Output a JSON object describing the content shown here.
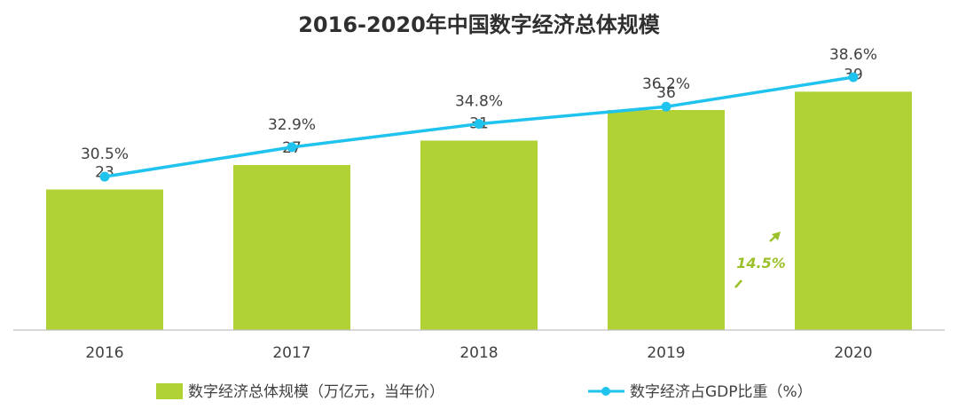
{
  "chart_data": {
    "type": "bar",
    "title": "2016-2020年中国数字经济总体规模",
    "categories": [
      "2016",
      "2017",
      "2018",
      "2019",
      "2020"
    ],
    "series": [
      {
        "name": "数字经济总体规模（万亿元，当年价）",
        "kind": "bar",
        "values": [
          23,
          27,
          31,
          36,
          39
        ],
        "labels": [
          "23",
          "27",
          "31",
          "36",
          "39"
        ],
        "color": "#b0d235"
      },
      {
        "name": "数字经济占GDP比重（%）",
        "kind": "line",
        "values": [
          30.5,
          32.9,
          34.8,
          36.2,
          38.6
        ],
        "labels": [
          "30.5%",
          "32.9%",
          "34.8%",
          "36.2%",
          "38.6%"
        ],
        "color": "#1fc3ee"
      }
    ],
    "bar_ylim": [
      0,
      45
    ],
    "line_ylim": [
      18,
      42
    ],
    "annotation": {
      "text": "14.5%",
      "color": "#9cc02a",
      "between": [
        "2019",
        "2020"
      ]
    },
    "legend_position": "bottom",
    "grid": false
  }
}
